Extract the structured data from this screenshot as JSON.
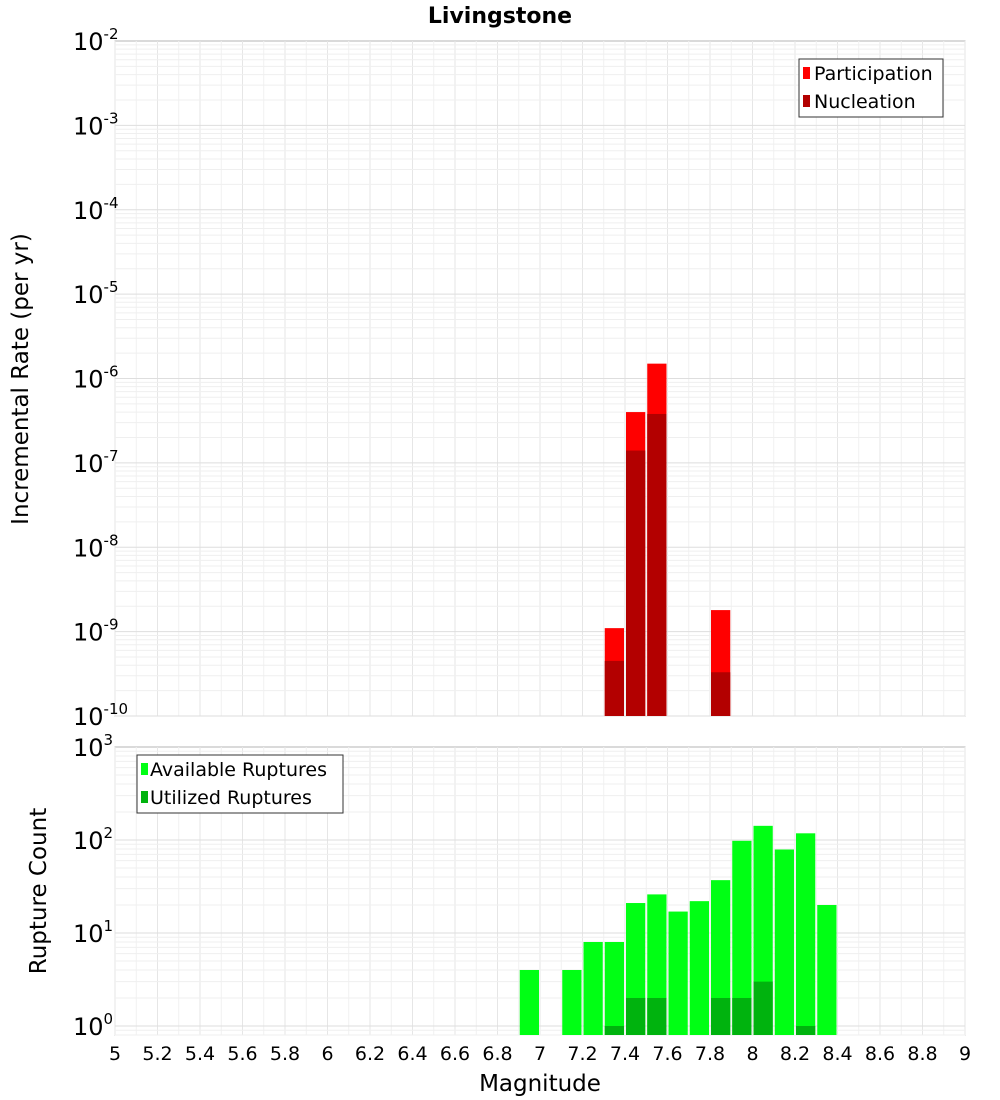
{
  "chart_data": [
    {
      "type": "bar",
      "title": "Livingstone",
      "xlabel": "",
      "ylabel": "Incremental Rate (per yr)",
      "xlim": [
        5,
        9
      ],
      "ylim": [
        1e-10,
        0.01
      ],
      "yscale": "log",
      "grid": true,
      "legend_position": "top-right",
      "bin_width": 0.1,
      "y_tick_labels": [
        {
          "base": "10",
          "exp": "-2"
        },
        {
          "base": "10",
          "exp": "-3"
        },
        {
          "base": "10",
          "exp": "-4"
        },
        {
          "base": "10",
          "exp": "-5"
        },
        {
          "base": "10",
          "exp": "-6"
        },
        {
          "base": "10",
          "exp": "-7"
        },
        {
          "base": "10",
          "exp": "-8"
        },
        {
          "base": "10",
          "exp": "-9"
        },
        {
          "base": "10",
          "exp": "-10"
        }
      ],
      "series": [
        {
          "name": "Participation",
          "color": "#ff0000",
          "x": [
            7.35,
            7.45,
            7.55,
            7.85
          ],
          "values": [
            1.1e-09,
            4e-07,
            1.5e-06,
            1.8e-09
          ]
        },
        {
          "name": "Nucleation",
          "color": "#b30000",
          "x": [
            7.35,
            7.45,
            7.55,
            7.85
          ],
          "values": [
            4.5e-10,
            1.4e-07,
            3.8e-07,
            3.3e-10
          ]
        }
      ]
    },
    {
      "type": "bar",
      "title": "",
      "xlabel": "Magnitude",
      "ylabel": "Rupture Count",
      "xlim": [
        5,
        9
      ],
      "ylim": [
        0.8,
        1000
      ],
      "yscale": "log",
      "grid": true,
      "legend_position": "top-left",
      "bin_width": 0.1,
      "x_ticks": [
        "5",
        "5.2",
        "5.4",
        "5.6",
        "5.8",
        "6",
        "6.2",
        "6.4",
        "6.6",
        "6.8",
        "7",
        "7.2",
        "7.4",
        "7.6",
        "7.8",
        "8",
        "8.2",
        "8.4",
        "8.6",
        "8.8",
        "9"
      ],
      "y_tick_labels": [
        {
          "base": "10",
          "exp": "3"
        },
        {
          "base": "10",
          "exp": "2"
        },
        {
          "base": "10",
          "exp": "1"
        },
        {
          "base": "10",
          "exp": "0"
        }
      ],
      "series": [
        {
          "name": "Available Ruptures",
          "color": "#00ff14",
          "x": [
            6.95,
            7.15,
            7.25,
            7.35,
            7.45,
            7.55,
            7.65,
            7.75,
            7.85,
            7.95,
            8.05,
            8.15,
            8.25,
            8.35
          ],
          "values": [
            4,
            4,
            8,
            8,
            21,
            26,
            17,
            22,
            37,
            98,
            142,
            79,
            118,
            20
          ]
        },
        {
          "name": "Utilized Ruptures",
          "color": "#00b30e",
          "x": [
            7.35,
            7.45,
            7.55,
            7.85,
            7.95,
            8.05,
            8.25
          ],
          "values": [
            1,
            2,
            2,
            2,
            2,
            3,
            1
          ]
        }
      ]
    }
  ]
}
